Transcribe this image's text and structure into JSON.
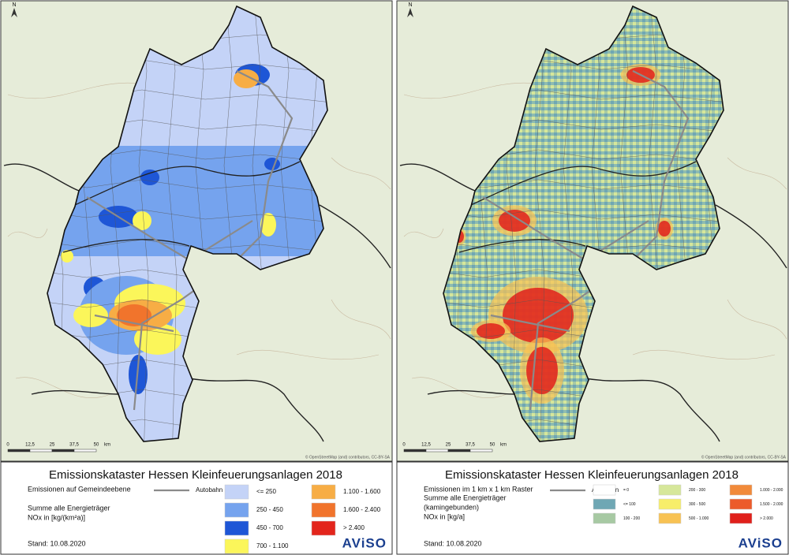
{
  "panels": [
    {
      "north": "N",
      "scale": [
        "0",
        "12,5",
        "25",
        "37,5",
        "50",
        "km"
      ],
      "attribution": "© OpenStreetMap (and) contributors, CC-BY-SA",
      "title": "Emissionskataster Hessen Kleinfeuerungsanlagen 2018",
      "subtitle": "Emissionen auf Gemeindeebene",
      "autobahn": "Autobahn",
      "heading": [
        "Summe alle Energieträger",
        "NOx in [kg/(km²a)]"
      ],
      "legend": [
        {
          "label": "<=    250",
          "color": "#c4d3f7"
        },
        {
          "label": "250 -   450",
          "color": "#75a3ee"
        },
        {
          "label": "450 -   700",
          "color": "#1e56d6"
        },
        {
          "label": "700 - 1.100",
          "color": "#fbf65a"
        },
        {
          "label": "1.100 - 1.600",
          "color": "#f7ad45"
        },
        {
          "label": "1.600 - 2.400",
          "color": "#f1742c"
        },
        {
          "label": "> 2.400",
          "color": "#e3251c"
        }
      ],
      "date": "Stand: 10.08.2020",
      "logo": "AViSO"
    },
    {
      "north": "N",
      "scale": [
        "0",
        "12,5",
        "25",
        "37,5",
        "50",
        "km"
      ],
      "attribution": "© OpenStreetMap (and) contributors, CC-BY-SA",
      "title": "Emissionskataster Hessen Kleinfeuerungsanlagen 2018",
      "subtitle": "Emissionen im 1 km x 1 km Raster",
      "autobahn": "Autobahn",
      "heading": [
        "Summe alle Energieträger",
        "(kamingebunden)",
        "NOx in [kg/a]"
      ],
      "legend": [
        {
          "label": "= 0",
          "color": "#ffffff"
        },
        {
          "label": "<= 100",
          "color": "#6fa7b4"
        },
        {
          "label": "100 - 200",
          "color": "#a7c9a3"
        },
        {
          "label": "200 - 300",
          "color": "#d6e79a"
        },
        {
          "label": "300 - 500",
          "color": "#f7ee6a"
        },
        {
          "label": "500 - 1.000",
          "color": "#f8c253"
        },
        {
          "label": "1.000 - 2.000",
          "color": "#f18a3a"
        },
        {
          "label": "1.500 - 2.000",
          "color": "#ec5b2b"
        },
        {
          "label": "> 2.000",
          "color": "#e0201b"
        }
      ],
      "date": "Stand: 10.08.2020",
      "logo": "AViSO"
    }
  ]
}
